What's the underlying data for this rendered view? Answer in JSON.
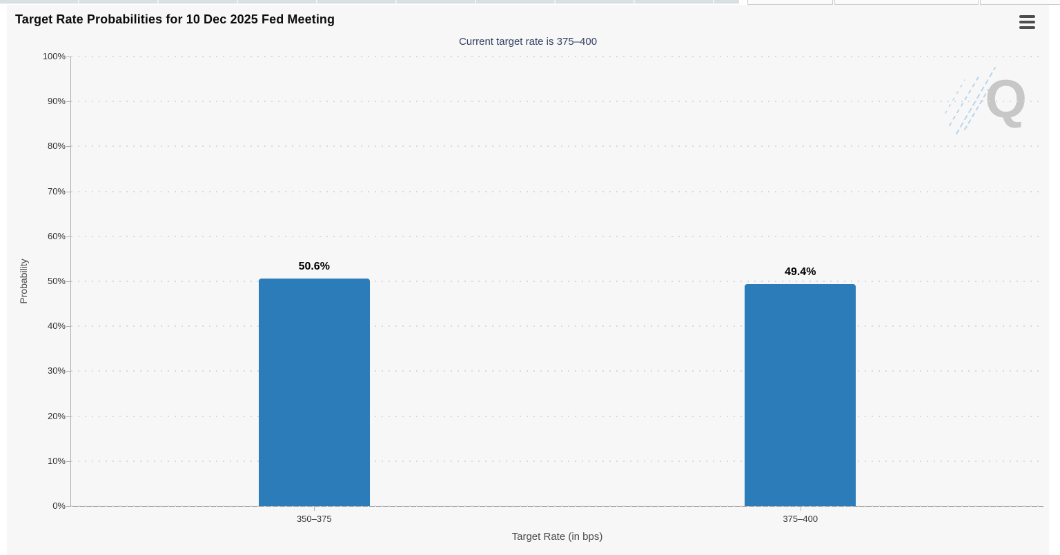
{
  "header": {
    "title": "Target Rate Probabilities for 10 Dec 2025 Fed Meeting"
  },
  "chart_data": {
    "type": "bar",
    "title": "Target Rate Probabilities for 10 Dec 2025 Fed Meeting",
    "subtitle": "Current target rate is 375–400",
    "categories": [
      "350–375",
      "375–400"
    ],
    "values": [
      50.6,
      49.4
    ],
    "value_labels": [
      "50.6%",
      "49.4%"
    ],
    "xlabel": "Target Rate (in bps)",
    "ylabel": "Probability",
    "ylim": [
      0,
      100
    ],
    "yticks": [
      "0%",
      "10%",
      "20%",
      "30%",
      "40%",
      "50%",
      "60%",
      "70%",
      "80%",
      "90%",
      "100%"
    ],
    "grid": "dotted-horizontal",
    "legend": "none",
    "bar_color": "#2b7cb8",
    "subtitle_color": "#333f63",
    "watermark_letter": "Q",
    "watermark_streak_color": "#b9d5ea"
  }
}
